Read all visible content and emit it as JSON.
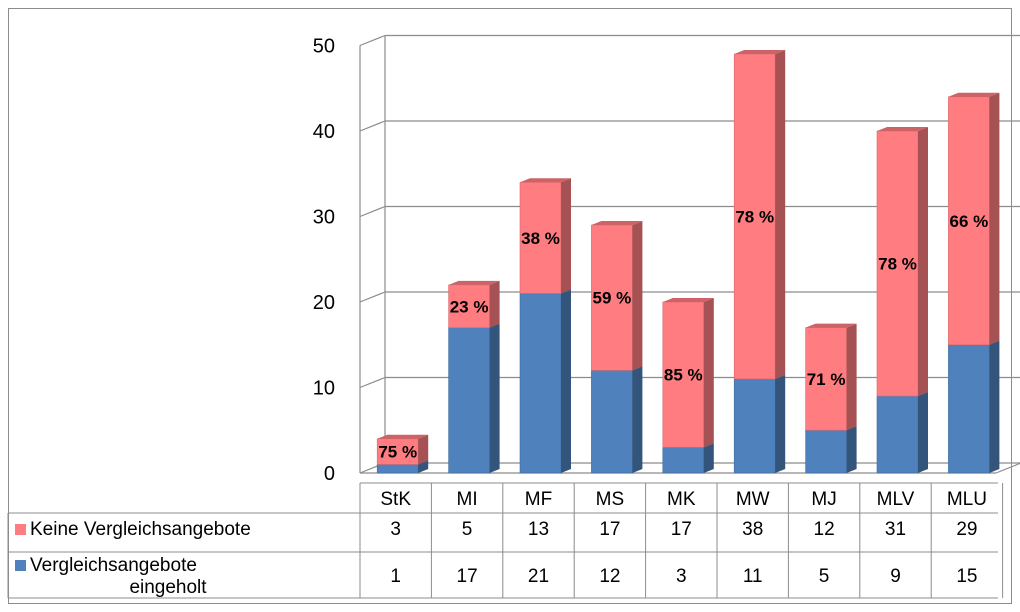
{
  "chart_data": {
    "type": "bar",
    "stacked": true,
    "three_d": true,
    "categories": [
      "StK",
      "MI",
      "MF",
      "MS",
      "MK",
      "MW",
      "MJ",
      "MLV",
      "MLU"
    ],
    "series": [
      {
        "name": "Keine Vergleichsangebote",
        "values": [
          3,
          5,
          13,
          17,
          17,
          38,
          12,
          31,
          29
        ],
        "color": "#ff7c80"
      },
      {
        "name": "Vergleichsangebote eingeholt",
        "values": [
          1,
          17,
          21,
          12,
          3,
          11,
          5,
          9,
          15
        ],
        "color": "#4f81bd"
      }
    ],
    "percent_labels": [
      "75 %",
      "23 %",
      "38 %",
      "59 %",
      "85 %",
      "78 %",
      "71 %",
      "78 %",
      "66 %"
    ],
    "ylim": [
      0,
      50
    ],
    "yticks": [
      0,
      10,
      20,
      30,
      40,
      50
    ],
    "grid": true,
    "data_table": true,
    "legend_in_table": true
  }
}
